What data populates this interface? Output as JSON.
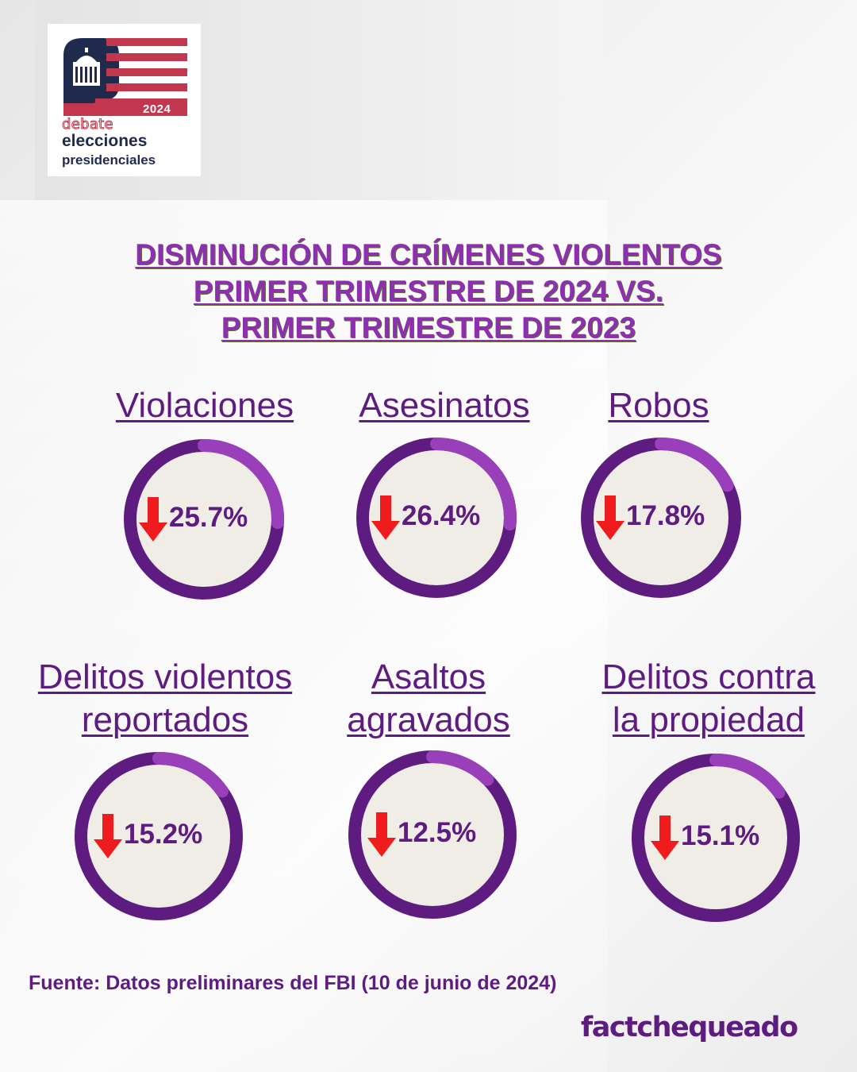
{
  "logo": {
    "year": "2024",
    "line1": "debate",
    "line2": "elecciones",
    "line3": "presidenciales",
    "colors": {
      "navy": "#1f2a4d",
      "red": "#c2374e"
    }
  },
  "title": {
    "line1": "DISMINUCIÓN DE CRÍMENES VIOLENTOS",
    "line2": "PRIMER TRIMESTRE DE 2024 VS.",
    "line3": "PRIMER TRIMESTRE DE 2023"
  },
  "chart_data": {
    "type": "donut",
    "categories": [
      "Violaciones",
      "Asesinatos",
      "Robos",
      "Delitos violentos reportados",
      "Asaltos agravados",
      "Delitos contra la propiedad"
    ],
    "values": [
      25.7,
      26.4,
      17.8,
      15.2,
      12.5,
      15.1
    ],
    "labels": [
      "25.7%",
      "26.4%",
      "17.8%",
      "15.2%",
      "12.5%",
      "15.1%"
    ],
    "direction": "down",
    "items": [
      {
        "label_lines": [
          "Violaciones"
        ],
        "value": 25.7,
        "text": "25.7%"
      },
      {
        "label_lines": [
          "Asesinatos"
        ],
        "value": 26.4,
        "text": "26.4%"
      },
      {
        "label_lines": [
          "Robos"
        ],
        "value": 17.8,
        "text": "17.8%"
      },
      {
        "label_lines": [
          "Delitos violentos",
          "reportados"
        ],
        "value": 15.2,
        "text": "15.2%"
      },
      {
        "label_lines": [
          "Asaltos",
          "agravados"
        ],
        "value": 12.5,
        "text": "12.5%"
      },
      {
        "label_lines": [
          "Delitos contra",
          "la propiedad"
        ],
        "value": 15.1,
        "text": "15.1%"
      }
    ],
    "colors": {
      "ring": "#5e1b80",
      "highlight": "#9a3fba",
      "inner": "#efede6",
      "arrow": "#ee1c1c",
      "text": "#5e1b80"
    }
  },
  "source": "Fuente: Datos preliminares del FBI (10 de junio de 2024)",
  "brand": "factchequeado"
}
